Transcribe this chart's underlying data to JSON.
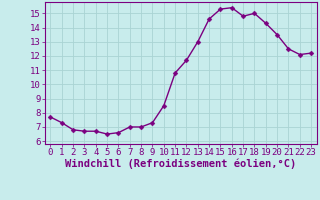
{
  "x": [
    0,
    1,
    2,
    3,
    4,
    5,
    6,
    7,
    8,
    9,
    10,
    11,
    12,
    13,
    14,
    15,
    16,
    17,
    18,
    19,
    20,
    21,
    22,
    23
  ],
  "y": [
    7.7,
    7.3,
    6.8,
    6.7,
    6.7,
    6.5,
    6.6,
    7.0,
    7.0,
    7.3,
    8.5,
    10.8,
    11.7,
    13.0,
    14.6,
    15.3,
    15.4,
    14.8,
    15.0,
    14.3,
    13.5,
    12.5,
    12.1,
    12.2
  ],
  "line_color": "#7b0080",
  "marker": "D",
  "marker_size": 2.5,
  "bg_color": "#c8ecec",
  "grid_color": "#aad4d4",
  "xlabel": "Windchill (Refroidissement éolien,°C)",
  "xlim": [
    -0.5,
    23.5
  ],
  "ylim": [
    5.8,
    15.8
  ],
  "yticks": [
    6,
    7,
    8,
    9,
    10,
    11,
    12,
    13,
    14,
    15
  ],
  "xticks": [
    0,
    1,
    2,
    3,
    4,
    5,
    6,
    7,
    8,
    9,
    10,
    11,
    12,
    13,
    14,
    15,
    16,
    17,
    18,
    19,
    20,
    21,
    22,
    23
  ],
  "line_width": 1.0
}
